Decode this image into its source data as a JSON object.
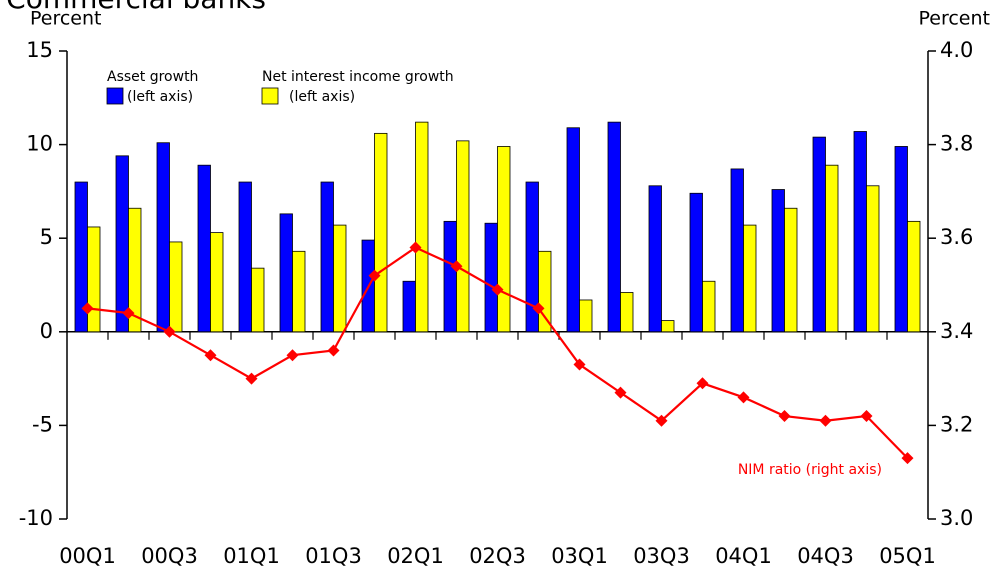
{
  "chart_data": {
    "type": "bar-line",
    "title": "Commercial banks",
    "ylabel": "Percent",
    "y2label": "Percent",
    "categories": [
      "00Q1",
      null,
      "00Q3",
      null,
      "01Q1",
      null,
      "01Q3",
      null,
      "02Q1",
      null,
      "02Q3",
      null,
      "03Q1",
      null,
      "03Q3",
      null,
      "04Q1",
      null,
      "04Q3",
      null,
      "05Q1"
    ],
    "series": [
      {
        "name": "Asset growth",
        "legend_note": "(left axis)",
        "type": "bar",
        "color": "#0000ff",
        "values": [
          8.0,
          9.4,
          10.1,
          8.9,
          8.0,
          6.3,
          8.0,
          4.9,
          2.7,
          5.9,
          5.8,
          8.0,
          10.9,
          11.2,
          7.8,
          7.4,
          8.7,
          7.6,
          10.4,
          10.7,
          9.9
        ]
      },
      {
        "name": "Net interest income growth",
        "legend_note": "(left axis)",
        "type": "bar",
        "color": "#ffff00",
        "values": [
          5.6,
          6.6,
          4.8,
          5.3,
          3.4,
          4.3,
          5.7,
          10.6,
          11.2,
          10.2,
          9.9,
          4.3,
          1.7,
          2.1,
          0.6,
          2.7,
          5.7,
          6.6,
          8.9,
          7.8,
          5.9
        ]
      },
      {
        "name": "NIM ratio (right axis)",
        "type": "line",
        "axis": "y2",
        "color": "#ff0000",
        "values": [
          3.45,
          3.44,
          3.4,
          3.35,
          3.3,
          3.35,
          3.36,
          3.52,
          3.58,
          3.54,
          3.49,
          3.45,
          3.33,
          3.27,
          3.21,
          3.29,
          3.26,
          3.22,
          3.21,
          3.22,
          3.13
        ]
      }
    ],
    "ylim": [
      -10,
      15
    ],
    "yticks": [
      -10,
      -5,
      0,
      5,
      10,
      15
    ],
    "y2lim": [
      3.0,
      4.0
    ],
    "y2ticks": [
      {
        "value": 3.0,
        "label": "3.0"
      },
      3.2,
      3.4,
      3.6,
      3.8,
      {
        "value": 4.0,
        "label": "4.0"
      }
    ],
    "grid": false
  }
}
